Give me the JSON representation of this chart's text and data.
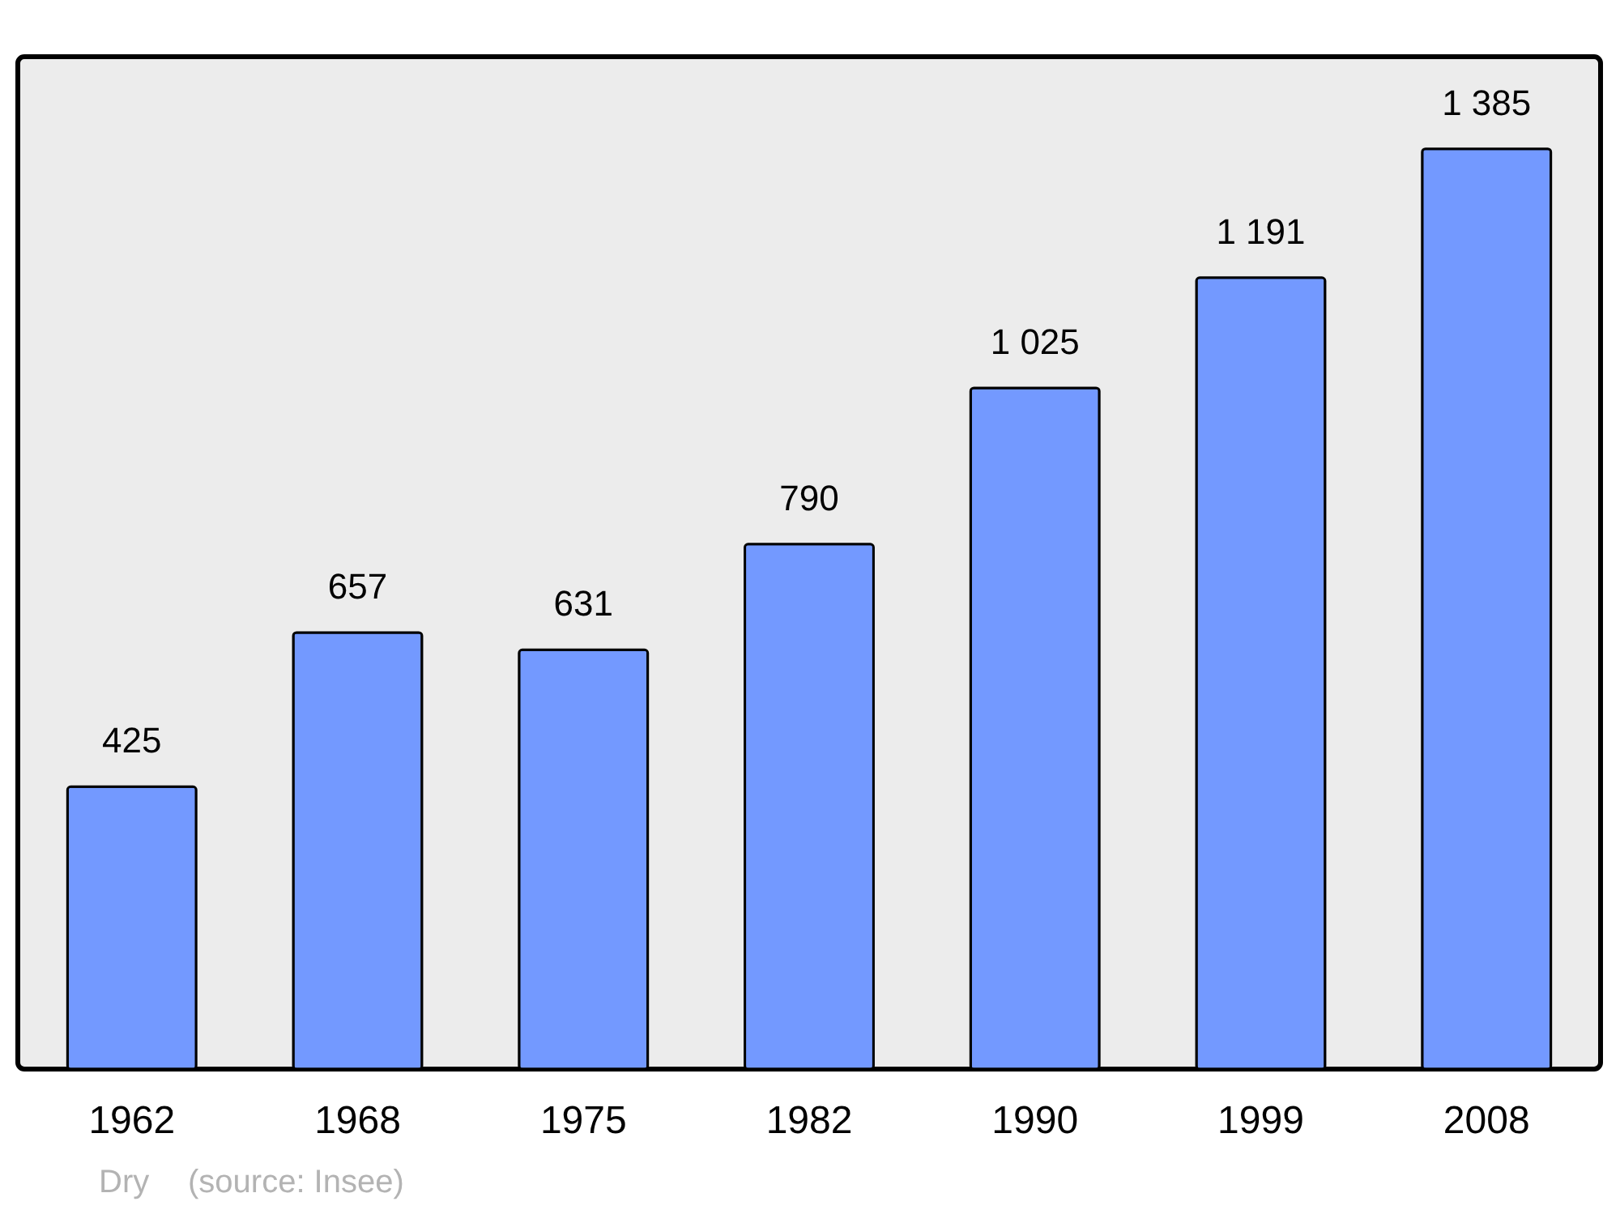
{
  "chart_data": {
    "type": "bar",
    "categories": [
      "1962",
      "1968",
      "1975",
      "1982",
      "1990",
      "1999",
      "2008"
    ],
    "values": [
      425,
      657,
      631,
      790,
      1025,
      1191,
      1385
    ],
    "value_labels": [
      "425",
      "657",
      "631",
      "790",
      "1 025",
      "1 191",
      "1 385"
    ],
    "color": "#7399ff",
    "grid": false,
    "annotations": [
      "Dry",
      "(source: Insee)"
    ]
  }
}
